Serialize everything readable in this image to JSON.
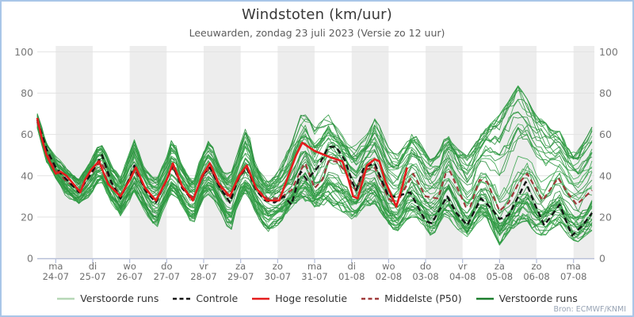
{
  "chart_data": {
    "type": "line",
    "title": "Windstoten (km/uur)",
    "subtitle": "Leeuwarden, zondag 23 juli 2023 (Versie zo 12 uur)",
    "source": "Bron: ECMWF/KNMI",
    "ylabel": "",
    "ylim": [
      0,
      100
    ],
    "y_ticks": [
      0,
      20,
      40,
      60,
      80,
      100
    ],
    "grid": true,
    "legend_position": "bottom",
    "x_axis": {
      "start": "zo 23-07 12:00",
      "hours_total": 360,
      "labels": [
        {
          "weekday": "ma",
          "date": "24-07"
        },
        {
          "weekday": "di",
          "date": "25-07"
        },
        {
          "weekday": "wo",
          "date": "26-07"
        },
        {
          "weekday": "do",
          "date": "27-07"
        },
        {
          "weekday": "vr",
          "date": "28-07"
        },
        {
          "weekday": "za",
          "date": "29-07"
        },
        {
          "weekday": "zo",
          "date": "30-07"
        },
        {
          "weekday": "ma",
          "date": "31-07"
        },
        {
          "weekday": "di",
          "date": "01-08"
        },
        {
          "weekday": "wo",
          "date": "02-08"
        },
        {
          "weekday": "do",
          "date": "03-08"
        },
        {
          "weekday": "vr",
          "date": "04-08"
        },
        {
          "weekday": "za",
          "date": "05-08"
        },
        {
          "weekday": "zo",
          "date": "06-08"
        },
        {
          "weekday": "ma",
          "date": "07-08"
        }
      ]
    },
    "series": [
      {
        "name": "Hoge resolutie",
        "color": "#e51b1b",
        "style": "solid",
        "width": 2.6,
        "points": [
          [
            0,
            68
          ],
          [
            3,
            58
          ],
          [
            6,
            50
          ],
          [
            12,
            41
          ],
          [
            15,
            42
          ],
          [
            19,
            40
          ],
          [
            28,
            32
          ],
          [
            31,
            38
          ],
          [
            35,
            43
          ],
          [
            40,
            47
          ],
          [
            46,
            36
          ],
          [
            54,
            30
          ],
          [
            60,
            38
          ],
          [
            64,
            44
          ],
          [
            70,
            34
          ],
          [
            77,
            28
          ],
          [
            84,
            38
          ],
          [
            88,
            46
          ],
          [
            94,
            35
          ],
          [
            101,
            28
          ],
          [
            107,
            40
          ],
          [
            112,
            46
          ],
          [
            118,
            36
          ],
          [
            125,
            30
          ],
          [
            131,
            40
          ],
          [
            136,
            45
          ],
          [
            142,
            34
          ],
          [
            149,
            28
          ],
          [
            157,
            28
          ],
          [
            163,
            40
          ],
          [
            168,
            50
          ],
          [
            172,
            56
          ],
          [
            180,
            52
          ],
          [
            190,
            49
          ],
          [
            198,
            47
          ],
          [
            202,
            38
          ],
          [
            205,
            30
          ],
          [
            208,
            29
          ],
          [
            214,
            45
          ],
          [
            219,
            48
          ],
          [
            222,
            47
          ],
          [
            226,
            37
          ],
          [
            233,
            25
          ],
          [
            237,
            35
          ],
          [
            240,
            44
          ]
        ]
      },
      {
        "name": "Controle",
        "color": "#141414",
        "style": "dashed",
        "width": 2.4,
        "points": [
          [
            0,
            67
          ],
          [
            6,
            53
          ],
          [
            12,
            44
          ],
          [
            18,
            39
          ],
          [
            27,
            32
          ],
          [
            34,
            40
          ],
          [
            42,
            50
          ],
          [
            48,
            37
          ],
          [
            54,
            29
          ],
          [
            60,
            39
          ],
          [
            63,
            45
          ],
          [
            70,
            33
          ],
          [
            77,
            27
          ],
          [
            84,
            38
          ],
          [
            88,
            45
          ],
          [
            94,
            34
          ],
          [
            101,
            28
          ],
          [
            107,
            40
          ],
          [
            112,
            44
          ],
          [
            118,
            35
          ],
          [
            125,
            27
          ],
          [
            131,
            40
          ],
          [
            136,
            44
          ],
          [
            142,
            33
          ],
          [
            148,
            28
          ],
          [
            154,
            27
          ],
          [
            160,
            30
          ],
          [
            165,
            26
          ],
          [
            171,
            42
          ],
          [
            175,
            38
          ],
          [
            182,
            44
          ],
          [
            189,
            54
          ],
          [
            194,
            54
          ],
          [
            200,
            47
          ],
          [
            205,
            36
          ],
          [
            207,
            33
          ],
          [
            212,
            44
          ],
          [
            219,
            46
          ],
          [
            228,
            30
          ],
          [
            233,
            30
          ],
          [
            242,
            32
          ],
          [
            252,
            18
          ],
          [
            256,
            17
          ],
          [
            266,
            30
          ],
          [
            272,
            22
          ],
          [
            279,
            16
          ],
          [
            288,
            29
          ],
          [
            295,
            24
          ],
          [
            300,
            19
          ],
          [
            306,
            21
          ],
          [
            317,
            37
          ],
          [
            323,
            26
          ],
          [
            329,
            16
          ],
          [
            339,
            26
          ],
          [
            347,
            11
          ],
          [
            354,
            16
          ],
          [
            360,
            22
          ]
        ]
      },
      {
        "name": "Middelste (P50)",
        "color": "#a03a3a",
        "style": "dashed",
        "width": 2.2,
        "points": [
          [
            0,
            66
          ],
          [
            6,
            52
          ],
          [
            12,
            43
          ],
          [
            18,
            38
          ],
          [
            27,
            33
          ],
          [
            34,
            40
          ],
          [
            41,
            47
          ],
          [
            48,
            37
          ],
          [
            54,
            30
          ],
          [
            60,
            38
          ],
          [
            63,
            43
          ],
          [
            70,
            34
          ],
          [
            77,
            28
          ],
          [
            84,
            38
          ],
          [
            88,
            44
          ],
          [
            94,
            35
          ],
          [
            101,
            29
          ],
          [
            107,
            39
          ],
          [
            112,
            44
          ],
          [
            118,
            35
          ],
          [
            125,
            29
          ],
          [
            131,
            39
          ],
          [
            136,
            44
          ],
          [
            142,
            34
          ],
          [
            149,
            29
          ],
          [
            157,
            29
          ],
          [
            165,
            33
          ],
          [
            172,
            44
          ],
          [
            174,
            46
          ],
          [
            180,
            34
          ],
          [
            185,
            38
          ],
          [
            189,
            47
          ],
          [
            194,
            47
          ],
          [
            200,
            42
          ],
          [
            205,
            35
          ],
          [
            207,
            33
          ],
          [
            213,
            43
          ],
          [
            219,
            44
          ],
          [
            228,
            29
          ],
          [
            233,
            26
          ],
          [
            238,
            33
          ],
          [
            244,
            41
          ],
          [
            252,
            30
          ],
          [
            260,
            29
          ],
          [
            265,
            41
          ],
          [
            268,
            42
          ],
          [
            278,
            25
          ],
          [
            281,
            25
          ],
          [
            287,
            38
          ],
          [
            292,
            37
          ],
          [
            300,
            23
          ],
          [
            306,
            27
          ],
          [
            312,
            36
          ],
          [
            318,
            41
          ],
          [
            328,
            28
          ],
          [
            338,
            39
          ],
          [
            344,
            32
          ],
          [
            350,
            26
          ],
          [
            360,
            33
          ]
        ]
      }
    ],
    "ensemble": {
      "name": "Verstoorde runs",
      "member_count": 50,
      "color": "#2f9b41",
      "envelope": [
        [
          0,
          63,
          71
        ],
        [
          6,
          46,
          56
        ],
        [
          12,
          38,
          50
        ],
        [
          18,
          30,
          44
        ],
        [
          27,
          26,
          38
        ],
        [
          34,
          30,
          46
        ],
        [
          41,
          38,
          57
        ],
        [
          48,
          28,
          44
        ],
        [
          54,
          22,
          38
        ],
        [
          63,
          33,
          56
        ],
        [
          70,
          24,
          42
        ],
        [
          77,
          15,
          36
        ],
        [
          84,
          28,
          48
        ],
        [
          88,
          34,
          58
        ],
        [
          94,
          26,
          44
        ],
        [
          101,
          17,
          35
        ],
        [
          107,
          30,
          50
        ],
        [
          112,
          33,
          57
        ],
        [
          118,
          25,
          44
        ],
        [
          125,
          13,
          38
        ],
        [
          131,
          28,
          52
        ],
        [
          136,
          33,
          64
        ],
        [
          142,
          22,
          44
        ],
        [
          149,
          14,
          36
        ],
        [
          157,
          18,
          42
        ],
        [
          165,
          26,
          55
        ],
        [
          172,
          30,
          70
        ],
        [
          180,
          26,
          62
        ],
        [
          189,
          28,
          68
        ],
        [
          198,
          24,
          58
        ],
        [
          205,
          20,
          52
        ],
        [
          213,
          26,
          58
        ],
        [
          219,
          28,
          68
        ],
        [
          228,
          18,
          52
        ],
        [
          233,
          14,
          48
        ],
        [
          240,
          20,
          55
        ],
        [
          244,
          22,
          60
        ],
        [
          252,
          16,
          50
        ],
        [
          256,
          11,
          45
        ],
        [
          262,
          20,
          52
        ],
        [
          266,
          22,
          60
        ],
        [
          272,
          16,
          52
        ],
        [
          279,
          12,
          48
        ],
        [
          287,
          20,
          58
        ],
        [
          292,
          20,
          62
        ],
        [
          300,
          8,
          68
        ],
        [
          306,
          14,
          75
        ],
        [
          312,
          18,
          82
        ],
        [
          317,
          20,
          77
        ],
        [
          323,
          14,
          68
        ],
        [
          329,
          12,
          65
        ],
        [
          334,
          16,
          60
        ],
        [
          339,
          18,
          60
        ],
        [
          345,
          12,
          52
        ],
        [
          350,
          9,
          50
        ],
        [
          355,
          12,
          55
        ],
        [
          360,
          15,
          62
        ]
      ]
    },
    "legend": [
      {
        "label": "Verstoorde runs",
        "color": "#b6d7b6",
        "style": "solid"
      },
      {
        "label": "Controle",
        "color": "#141414",
        "style": "dashed"
      },
      {
        "label": "Hoge resolutie",
        "color": "#e51b1b",
        "style": "solid"
      },
      {
        "label": "Middelste (P50)",
        "color": "#a03a3a",
        "style": "dashed"
      },
      {
        "label": "Verstoorde runs",
        "color": "#1b7e2c",
        "style": "solid"
      }
    ],
    "colors": {
      "frame_border": "#a9c6e8",
      "day_band": "#ededed",
      "gridline": "#e2e2e2",
      "axis": "#b3bdd8",
      "tick_label": "#787878",
      "day_label": "#6e6e6e"
    }
  }
}
